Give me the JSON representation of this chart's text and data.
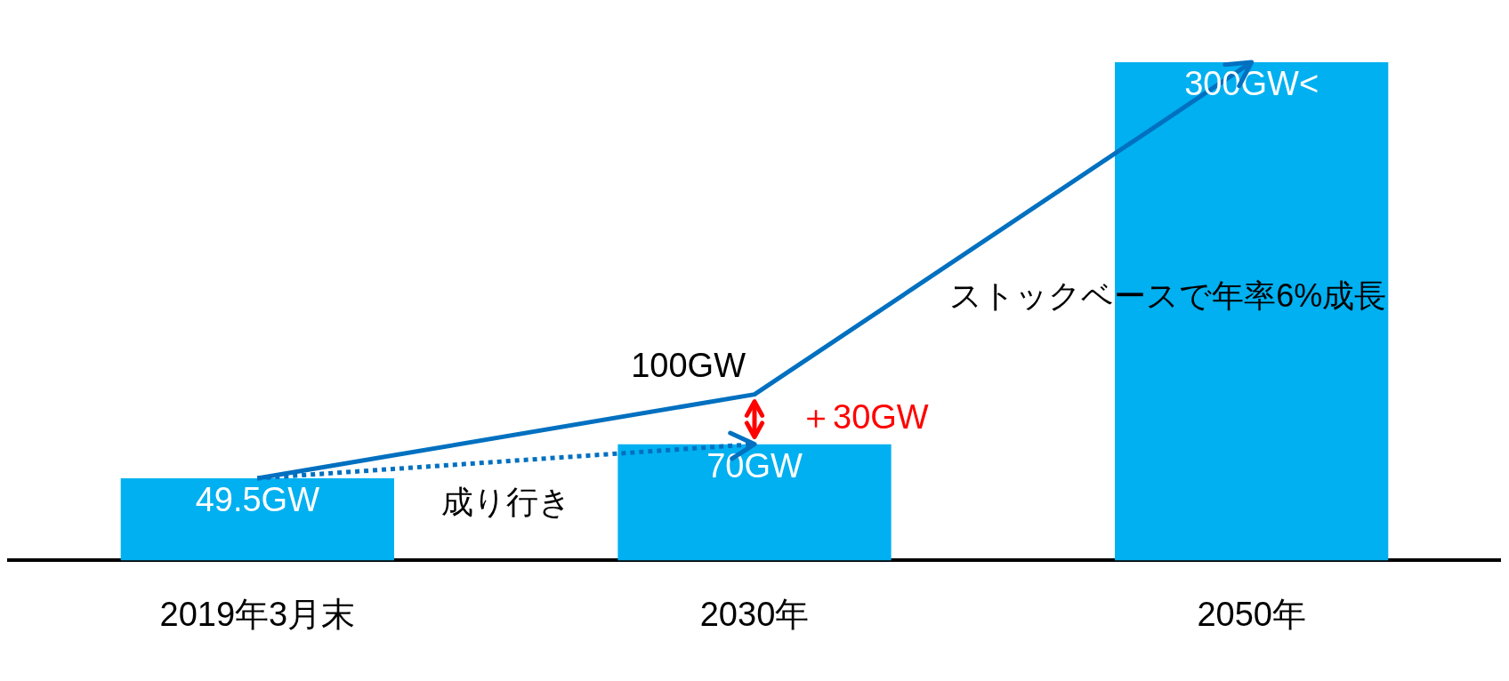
{
  "chart_data": {
    "type": "bar",
    "categories": [
      "2019年3月末",
      "2030年",
      "2050年"
    ],
    "series": [
      {
        "color": "#00b0f0",
        "values": [
          49.5,
          70,
          300
        ],
        "value_labels": [
          "49.5GW",
          "70GW",
          "300GW<"
        ]
      },
      {
        "type": "line",
        "name": "成り行き",
        "color": "#0070c0",
        "line_style": "dotted",
        "values": [
          49.5,
          70,
          null
        ]
      },
      {
        "type": "line",
        "name": "ストックベースで年率6%成長",
        "color": "#0070c0",
        "line_style": "solid",
        "values": [
          49.5,
          100,
          300
        ]
      }
    ],
    "annotations": [
      {
        "text": "100GW",
        "x": "2030年",
        "y": 100
      },
      "＋30GW"
    ],
    "ylim": [
      0,
      300
    ],
    "tick_labels": "x",
    "grid": false,
    "legend": false
  }
}
